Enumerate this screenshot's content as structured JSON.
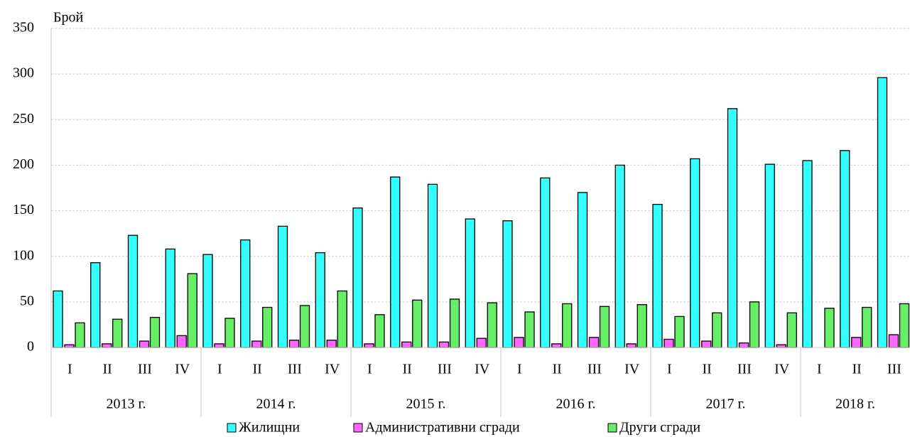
{
  "chart_data": {
    "type": "bar",
    "y_label": "Брой",
    "years": [
      {
        "label": "2013 г.",
        "quarters": [
          "I",
          "II",
          "III",
          "IV"
        ]
      },
      {
        "label": "2014 г.",
        "quarters": [
          "I",
          "II",
          "III",
          "IV"
        ]
      },
      {
        "label": "2015 г.",
        "quarters": [
          "I",
          "II",
          "III",
          "IV"
        ]
      },
      {
        "label": "2016 г.",
        "quarters": [
          "I",
          "II",
          "III",
          "IV"
        ]
      },
      {
        "label": "2017 г.",
        "quarters": [
          "I",
          "II",
          "III",
          "IV"
        ]
      },
      {
        "label": "2018 г.",
        "quarters": [
          "I",
          "II",
          "III"
        ]
      }
    ],
    "series": [
      {
        "name": "Жилищни",
        "color": "#33ffff",
        "values": [
          62,
          93,
          123,
          108,
          102,
          118,
          133,
          104,
          153,
          187,
          179,
          141,
          139,
          186,
          170,
          200,
          157,
          207,
          262,
          201,
          205,
          216,
          296
        ]
      },
      {
        "name": "Административни сгради",
        "color": "#ff66ff",
        "values": [
          3,
          4,
          7,
          13,
          4,
          7,
          8,
          8,
          4,
          6,
          6,
          10,
          11,
          4,
          11,
          4,
          9,
          7,
          5,
          3,
          0,
          11,
          14
        ]
      },
      {
        "name": "Други сгради",
        "color": "#66ee66",
        "values": [
          27,
          31,
          33,
          81,
          32,
          44,
          46,
          62,
          36,
          52,
          53,
          49,
          39,
          48,
          45,
          47,
          34,
          38,
          50,
          38,
          43,
          44,
          48
        ]
      }
    ],
    "ylim": [
      0,
      350
    ],
    "yticks": [
      0,
      50,
      100,
      150,
      200,
      250,
      300,
      350
    ],
    "grid": true
  }
}
